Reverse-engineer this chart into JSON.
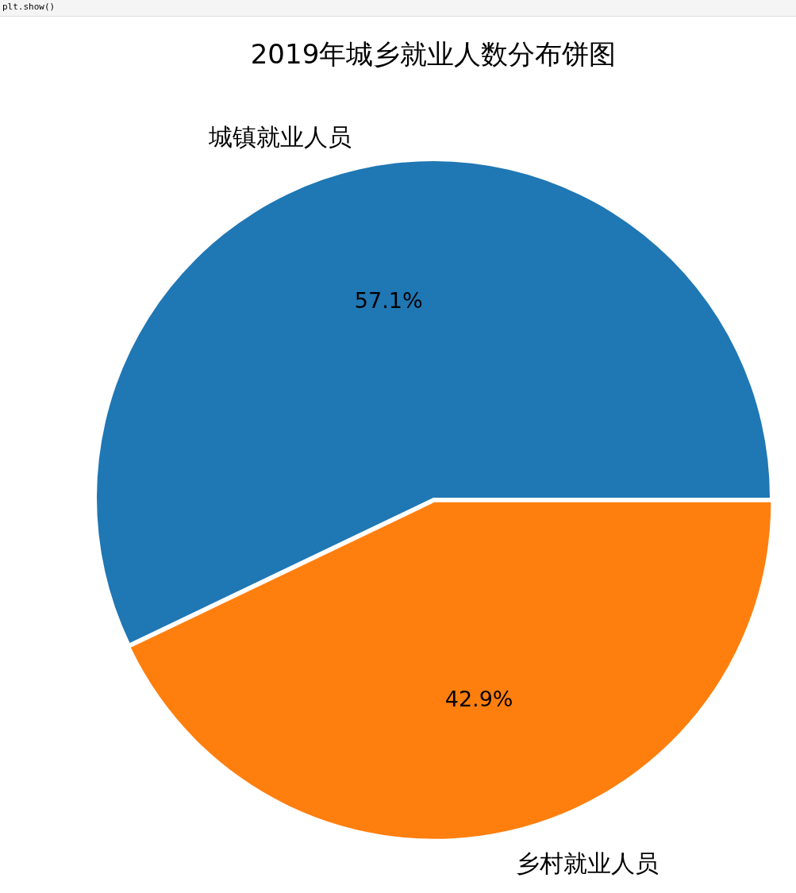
{
  "chart_data": {
    "type": "pie",
    "title": "2019年城乡就业人数分布饼图",
    "categories": [
      "城镇就业人员",
      "乡村就业人员"
    ],
    "values": [
      57.1,
      42.9
    ],
    "colors": [
      "#1f77b4",
      "#ff7f0e"
    ],
    "value_labels": [
      "57.1%",
      "42.9%"
    ],
    "annotations": [
      "plt.show()"
    ]
  }
}
